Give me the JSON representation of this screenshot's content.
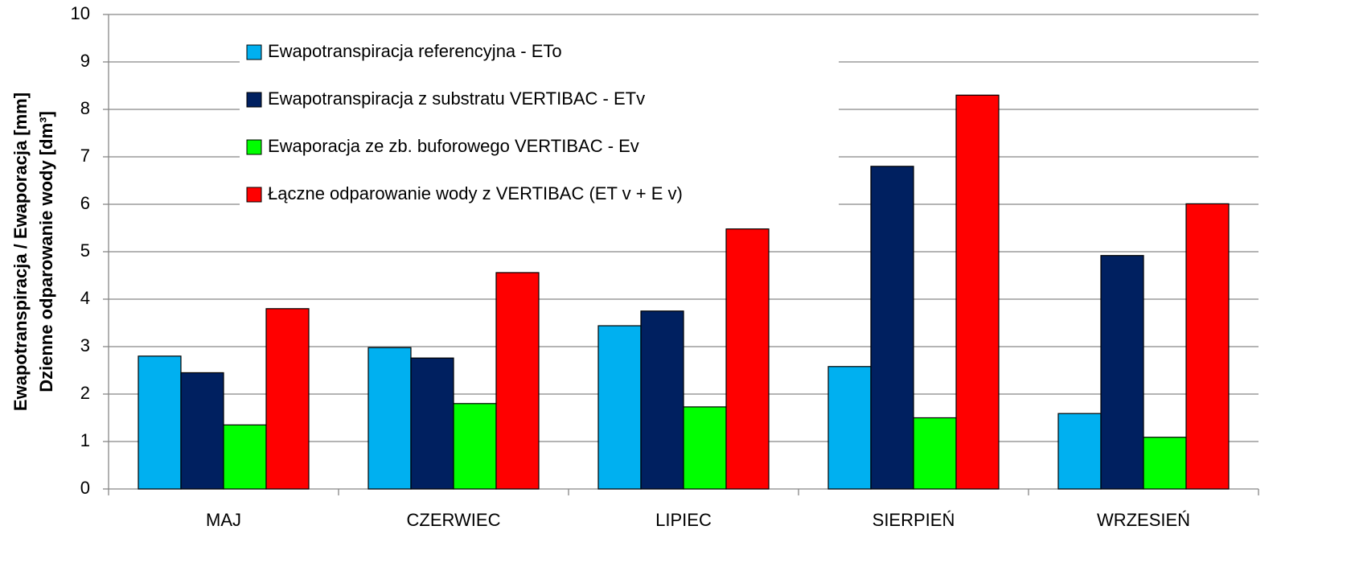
{
  "chart_data": {
    "type": "bar",
    "y_label": [
      "Ewapotranspiracja / Ewaporacja  [mm]",
      "Dzienne odparowanie wody  [dm³]"
    ],
    "categories": [
      "MAJ",
      "CZERWIEC",
      "LIPIEC",
      "SIERPIEŃ",
      "WRZESIEŃ"
    ],
    "series": [
      {
        "name": "Ewapotranspiracja referencyjna - ETo",
        "color": "#00b0f0",
        "values": [
          2.8,
          2.98,
          3.44,
          2.58,
          1.59
        ]
      },
      {
        "name": "Ewapotranspiracja z substratu VERTIBAC - ETv",
        "color": "#002060",
        "values": [
          2.45,
          2.76,
          3.75,
          6.8,
          4.92
        ]
      },
      {
        "name": "Ewaporacja ze zb. buforowego VERTIBAC - Ev",
        "color": "#00ff00",
        "values": [
          1.35,
          1.8,
          1.73,
          1.5,
          1.09
        ]
      },
      {
        "name": "Łączne odparowanie wody z VERTIBAC (ET v + E v)",
        "color": "#ff0000",
        "values": [
          3.8,
          4.56,
          5.48,
          8.3,
          6.01
        ]
      }
    ],
    "ylim": [
      0,
      10
    ],
    "yticks": [
      0,
      1,
      2,
      3,
      4,
      5,
      6,
      7,
      8,
      9,
      10
    ],
    "grid": true,
    "legend": "upper left"
  }
}
